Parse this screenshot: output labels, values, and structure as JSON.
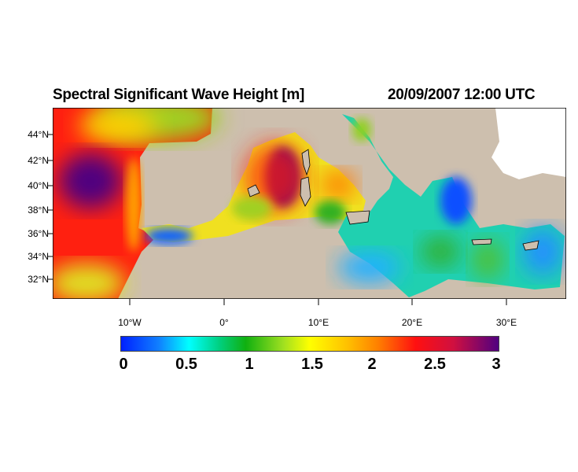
{
  "title": "Spectral Significant Wave Height [m]",
  "timestamp": "20/09/2007 12:00 UTC",
  "lat_labels": [
    "44°N",
    "42°N",
    "40°N",
    "38°N",
    "36°N",
    "34°N",
    "32°N"
  ],
  "lon_labels": [
    "10°W",
    "0°",
    "10°E",
    "20°E",
    "30°E"
  ],
  "colorbar": {
    "labels": [
      "0",
      "0.5",
      "1",
      "1.5",
      "2",
      "2.5",
      "3"
    ],
    "range": [
      0,
      3
    ],
    "colors": [
      "#0020ff",
      "#00ffff",
      "#10b010",
      "#ffff00",
      "#ff8000",
      "#ff1010",
      "#500080"
    ]
  },
  "colors": {
    "land": "#cdbfae",
    "nodata": "#ffffff"
  }
}
